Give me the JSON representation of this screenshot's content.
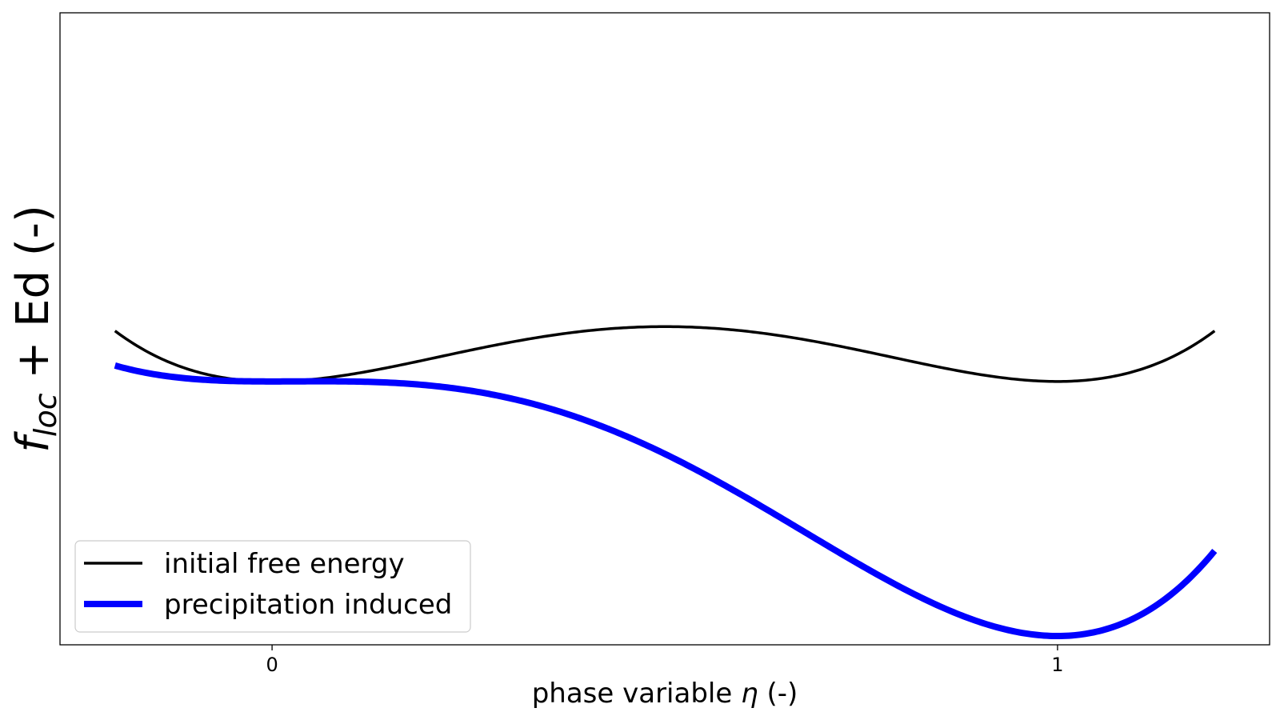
{
  "chart_data": {
    "type": "line",
    "xlabel_prefix": "phase variable ",
    "xlabel_symbol": "η",
    "xlabel_suffix": " (-)",
    "ylabel_main": "f",
    "ylabel_sub": "loc",
    "ylabel_rest": " + Ed (-)",
    "x_ticks": [
      0,
      1
    ],
    "x_tick_labels": [
      "0",
      "1"
    ],
    "y_ticks_shown": false,
    "xlim": [
      -0.27,
      1.27
    ],
    "ylim": [
      -0.3,
      0.42
    ],
    "grid": false,
    "legend_position": "lower-left",
    "series": [
      {
        "name": "initial free energy",
        "color": "#000000",
        "model": "double_well",
        "height": 1.0,
        "tilt": 0.0
      },
      {
        "name": "precipitation induced",
        "color": "#0000ff",
        "model": "double_well_tilted",
        "height": 1.0,
        "tilt": 0.29
      }
    ],
    "x_range": [
      -0.2,
      1.2
    ]
  }
}
